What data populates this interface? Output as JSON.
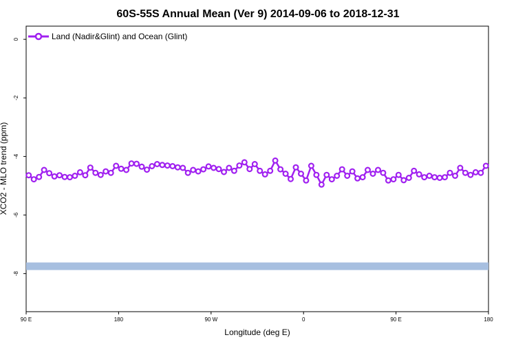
{
  "chart_data": {
    "type": "line",
    "title": "60S-55S Annual Mean (Ver 9)   2014-09-06 to 2018-12-31",
    "xlabel": "Longitude (deg E)",
    "ylabel": "XCO2 - MLO trend (ppm)",
    "x_tick_labels": [
      "90 E",
      "180",
      "90 W",
      "0",
      "90 E",
      "180"
    ],
    "x_tick_values": [
      90,
      180,
      270,
      360,
      450,
      540
    ],
    "xlim": [
      90,
      540
    ],
    "y_tick_labels": [
      "0",
      "-2",
      "-4",
      "-6",
      "-8"
    ],
    "y_tick_values": [
      0,
      -2,
      -4,
      -6,
      -8
    ],
    "ylim": [
      -9.3,
      0.45
    ],
    "grid": false,
    "legend_position": "top-left",
    "series": [
      {
        "name": "Land (Nadir&Glint) and Ocean (Glint)",
        "color": "#a020f0",
        "marker": "open-circle",
        "x": [
          92.5,
          97.5,
          102.5,
          107.5,
          112.5,
          117.5,
          122.5,
          127.5,
          132.5,
          137.5,
          142.5,
          147.5,
          152.5,
          157.5,
          162.5,
          167.5,
          172.5,
          177.5,
          182.5,
          187.5,
          192.5,
          197.5,
          202.5,
          207.5,
          212.5,
          217.5,
          222.5,
          227.5,
          232.5,
          237.5,
          242.5,
          247.5,
          252.5,
          257.5,
          262.5,
          267.5,
          272.5,
          277.5,
          282.5,
          287.5,
          292.5,
          297.5,
          302.5,
          307.5,
          312.5,
          317.5,
          322.5,
          327.5,
          332.5,
          337.5,
          342.5,
          347.5,
          352.5,
          357.5,
          362.5,
          367.5,
          372.5,
          377.5,
          382.5,
          387.5,
          392.5,
          397.5,
          402.5,
          407.5,
          412.5,
          417.5,
          422.5,
          427.5,
          432.5,
          437.5,
          442.5,
          447.5,
          452.5,
          457.5,
          462.5,
          467.5,
          472.5,
          477.5,
          482.5,
          487.5,
          492.5,
          497.5,
          502.5,
          507.5,
          512.5,
          517.5,
          522.5,
          527.5,
          532.5,
          537.5
        ],
        "y": [
          -4.64,
          -4.78,
          -4.7,
          -4.46,
          -4.57,
          -4.68,
          -4.64,
          -4.7,
          -4.71,
          -4.66,
          -4.54,
          -4.64,
          -4.38,
          -4.56,
          -4.63,
          -4.51,
          -4.56,
          -4.32,
          -4.42,
          -4.46,
          -4.24,
          -4.25,
          -4.35,
          -4.45,
          -4.33,
          -4.26,
          -4.29,
          -4.31,
          -4.33,
          -4.37,
          -4.39,
          -4.56,
          -4.46,
          -4.51,
          -4.44,
          -4.34,
          -4.39,
          -4.43,
          -4.53,
          -4.39,
          -4.49,
          -4.31,
          -4.2,
          -4.43,
          -4.26,
          -4.49,
          -4.61,
          -4.49,
          -4.14,
          -4.44,
          -4.59,
          -4.77,
          -4.37,
          -4.59,
          -4.82,
          -4.32,
          -4.63,
          -4.96,
          -4.63,
          -4.78,
          -4.66,
          -4.44,
          -4.66,
          -4.51,
          -4.75,
          -4.71,
          -4.46,
          -4.59,
          -4.46,
          -4.56,
          -4.82,
          -4.78,
          -4.63,
          -4.81,
          -4.73,
          -4.49,
          -4.61,
          -4.71,
          -4.66,
          -4.71,
          -4.73,
          -4.71,
          -4.56,
          -4.66,
          -4.39,
          -4.56,
          -4.63,
          -4.54,
          -4.56,
          -4.32
        ]
      },
      {
        "name": "",
        "color": "#a7bfe0",
        "marker": "thick-line",
        "x": [
          90,
          540
        ],
        "y": [
          -7.75,
          -7.75
        ]
      }
    ]
  }
}
